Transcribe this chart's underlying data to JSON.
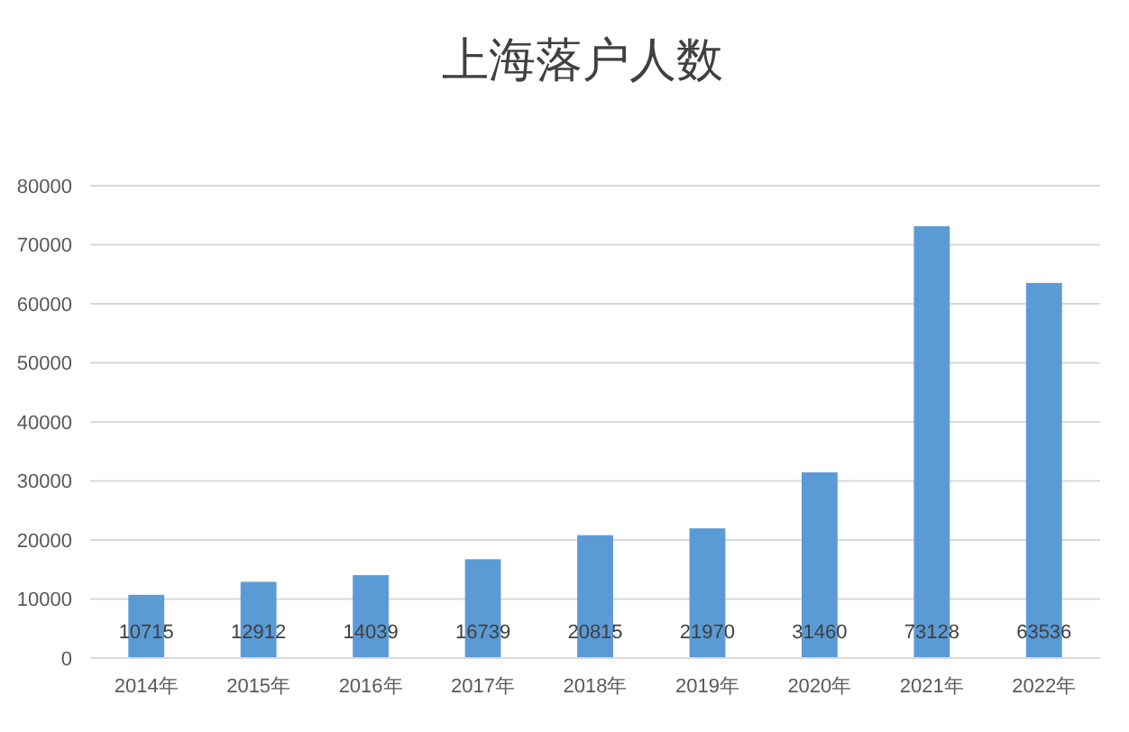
{
  "chart_data": {
    "type": "bar",
    "title": "上海落户人数",
    "categories": [
      "2014年",
      "2015年",
      "2016年",
      "2017年",
      "2018年",
      "2019年",
      "2020年",
      "2021年",
      "2022年"
    ],
    "values": [
      10715,
      12912,
      14039,
      16739,
      20815,
      21970,
      31460,
      73128,
      63536
    ],
    "color": "#5b9bd5",
    "ylim": [
      0,
      80000
    ],
    "yticks": [
      0,
      10000,
      20000,
      30000,
      40000,
      50000,
      60000,
      70000,
      80000
    ],
    "grid": "y",
    "data_labels": true
  }
}
